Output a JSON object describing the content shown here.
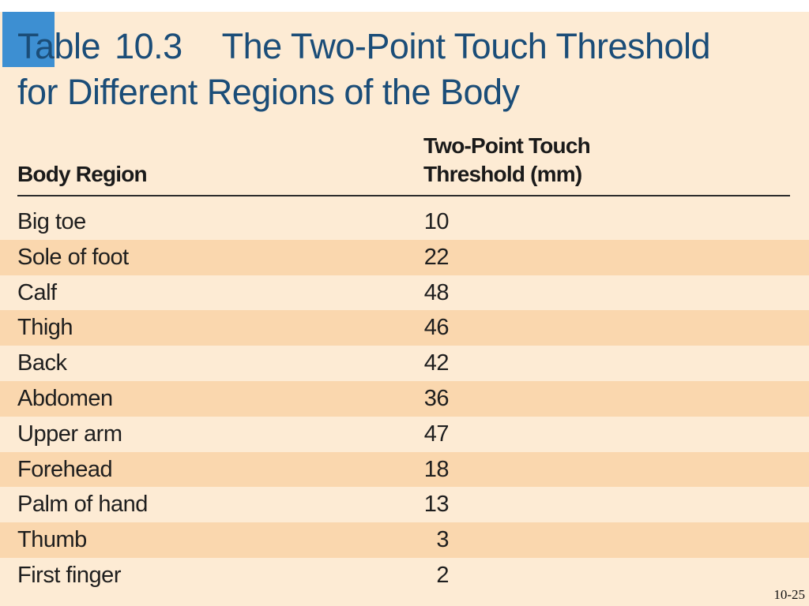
{
  "title": {
    "prefix": "Table",
    "number": "10.3",
    "line1_rest": "The Two-Point Touch Threshold",
    "line2": "for Different Regions of the Body"
  },
  "columns": {
    "region": "Body Region",
    "threshold_line1": "Two-Point Touch",
    "threshold_line2": "Threshold (mm)"
  },
  "rows": [
    {
      "region": "Big toe",
      "value": "10"
    },
    {
      "region": "Sole of foot",
      "value": "22"
    },
    {
      "region": "Calf",
      "value": "48"
    },
    {
      "region": "Thigh",
      "value": "46"
    },
    {
      "region": "Back",
      "value": "42"
    },
    {
      "region": "Abdomen",
      "value": "36"
    },
    {
      "region": "Upper arm",
      "value": "47"
    },
    {
      "region": "Forehead",
      "value": "18"
    },
    {
      "region": "Palm of hand",
      "value": "13"
    },
    {
      "region": "Thumb",
      "value": "3"
    },
    {
      "region": "First finger",
      "value": "2"
    }
  ],
  "page_number": "10-25",
  "colors": {
    "panel": "#fdebd4",
    "row_shade": "#fad7ae",
    "title": "#1b4d78",
    "accent": "#3d8fd2"
  }
}
